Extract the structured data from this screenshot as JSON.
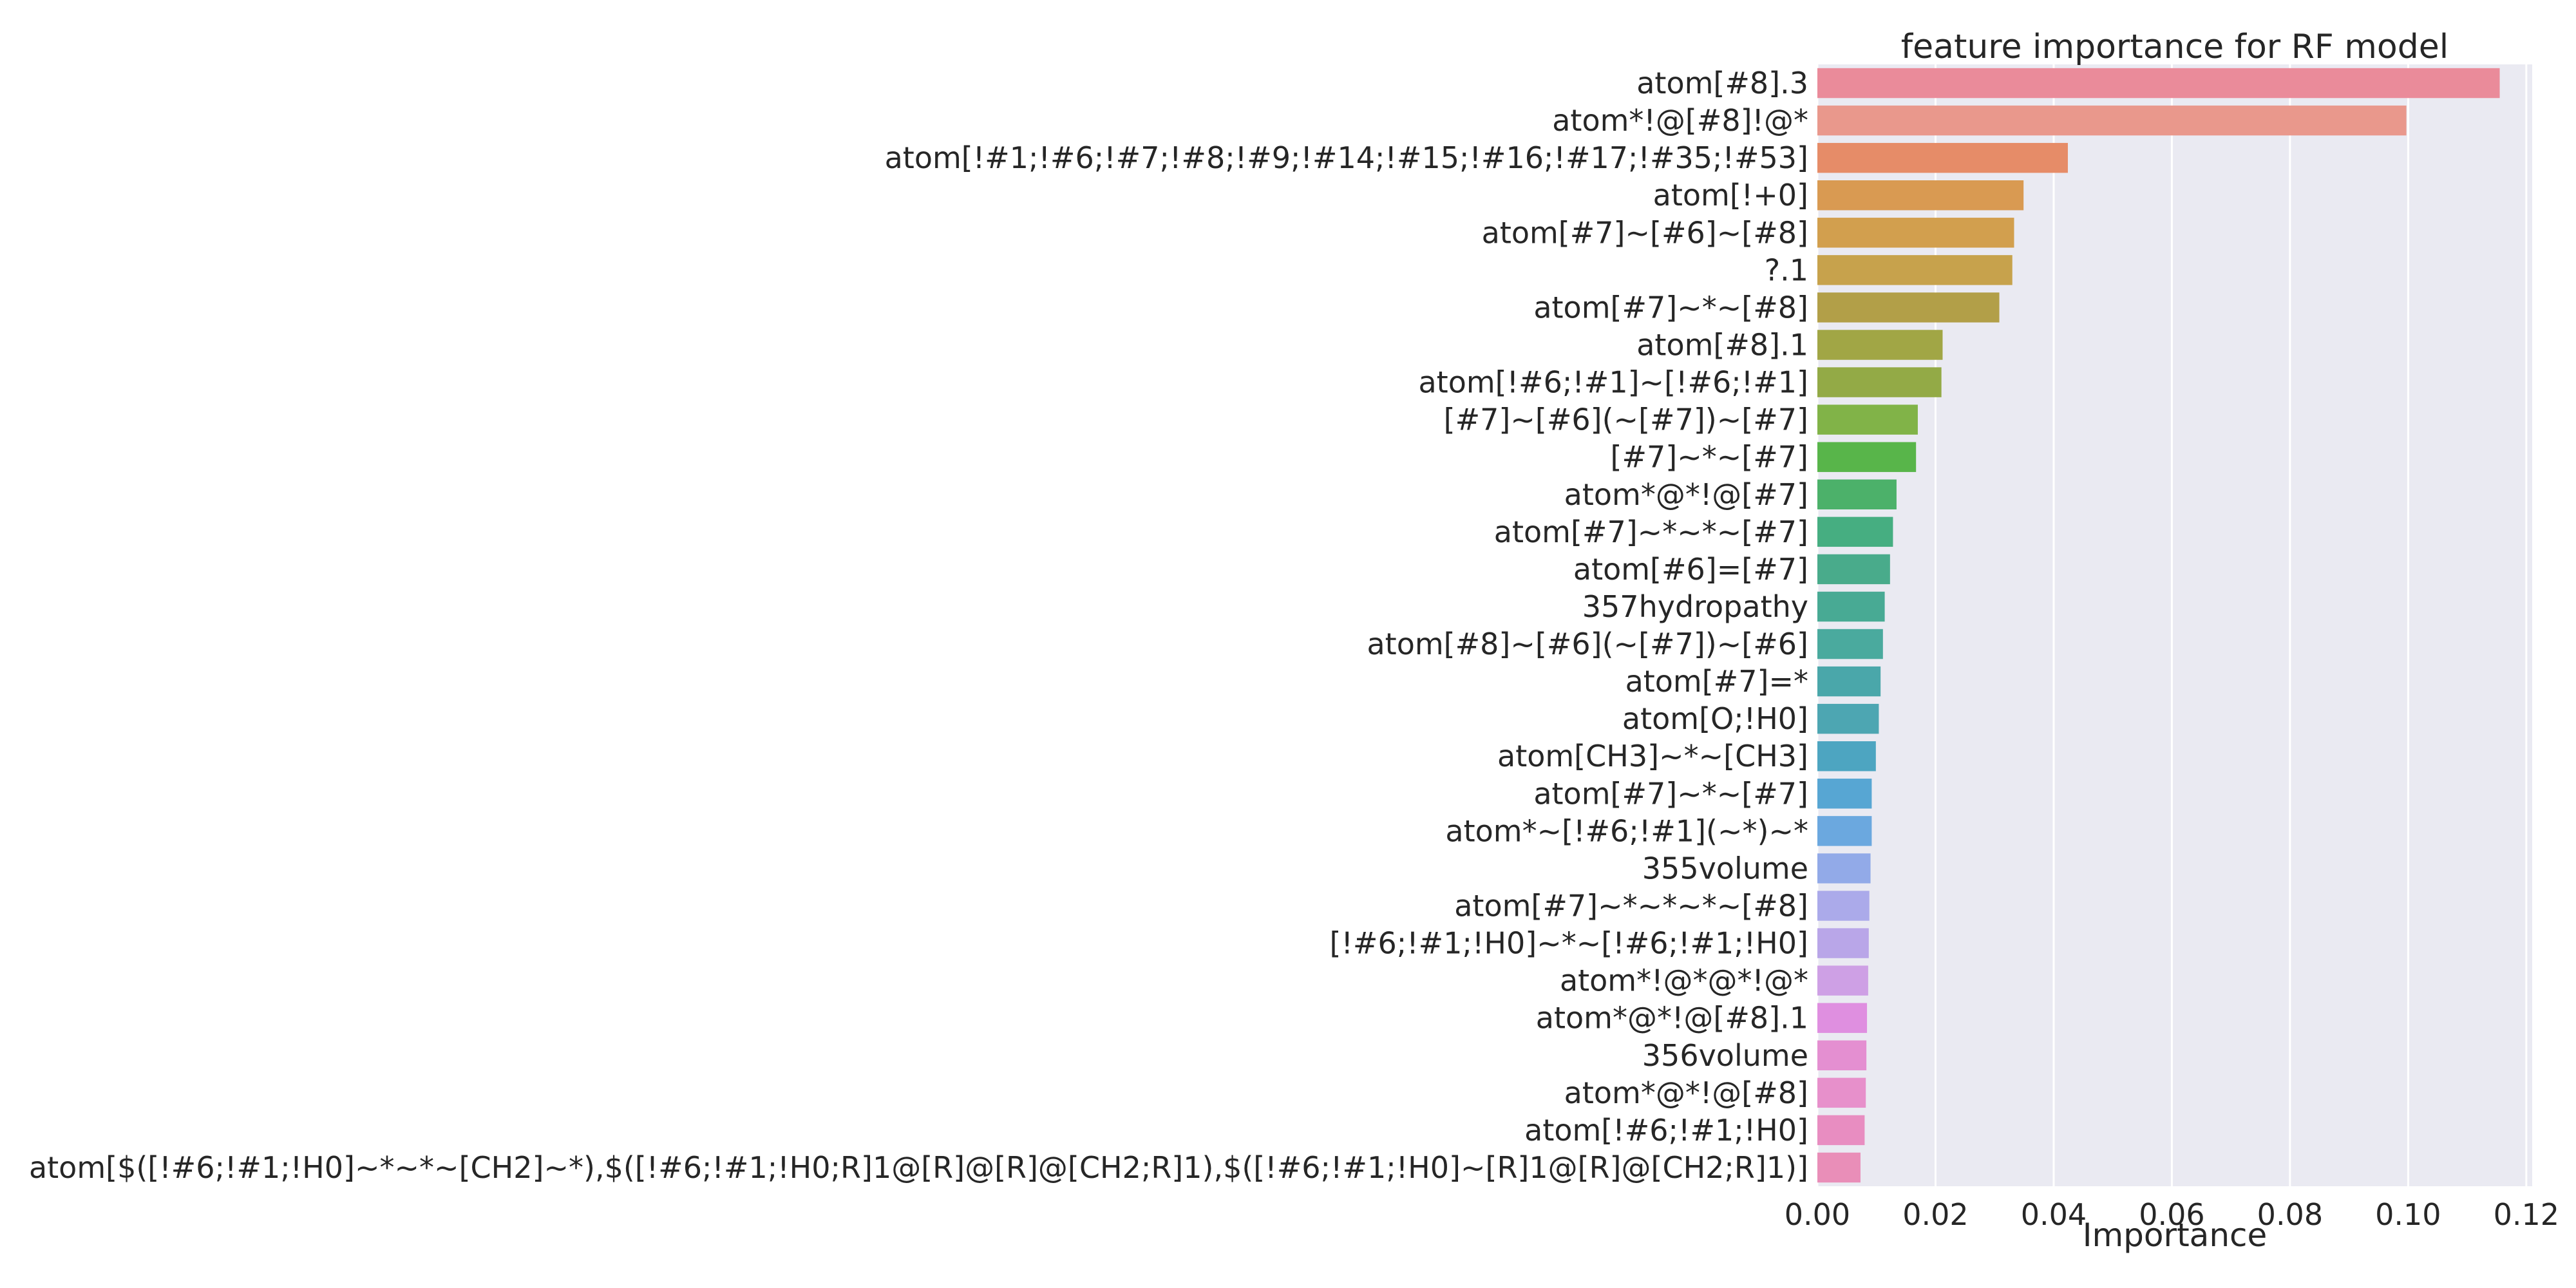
{
  "chart_data": {
    "type": "bar",
    "orientation": "horizontal",
    "title": "feature importance for RF model",
    "xlabel": "Importance",
    "ylabel": "",
    "xlim": [
      0.0,
      0.121
    ],
    "xticks": [
      0.0,
      0.02,
      0.04,
      0.06,
      0.08,
      0.1,
      0.12
    ],
    "xtick_labels": [
      "0.00",
      "0.02",
      "0.04",
      "0.06",
      "0.08",
      "0.10",
      "0.12"
    ],
    "grid": true,
    "legend": "none",
    "background": "#eaeaf2",
    "categories": [
      "atom[#8].3",
      "atom*!@[#8]!@*",
      "atom[!#1;!#6;!#7;!#8;!#9;!#14;!#15;!#16;!#17;!#35;!#53]",
      "atom[!+0]",
      "atom[#7]~[#6]~[#8]",
      "?.1",
      "atom[#7]~*~[#8]",
      "atom[#8].1",
      "atom[!#6;!#1]~[!#6;!#1]",
      "[#7]~[#6](~[#7])~[#7]",
      "[#7]~*~[#7]",
      "atom*@*!@[#7]",
      "atom[#7]~*~*~[#7]",
      "atom[#6]=[#7]",
      "357hydropathy",
      "atom[#8]~[#6](~[#7])~[#6]",
      "atom[#7]=*",
      "atom[O;!H0]",
      "atom[CH3]~*~[CH3]",
      "atom[#7]~*~[#7]",
      "atom*~[!#6;!#1](~*)~*",
      "355volume",
      "atom[#7]~*~*~*~[#8]",
      "[!#6;!#1;!H0]~*~[!#6;!#1;!H0]",
      "atom*!@*@*!@*",
      "atom*@*!@[#8].1",
      "356volume",
      "atom*@*!@[#8]",
      "atom[!#6;!#1;!H0]",
      "atom[$([!#6;!#1;!H0]~*~*~[CH2]~*),$([!#6;!#1;!H0;R]1@[R]@[R]@[CH2;R]1),$([!#6;!#1;!H0]~[R]1@[R]@[CH2;R]1)]"
    ],
    "values": [
      0.1155,
      0.0997,
      0.0424,
      0.0349,
      0.0333,
      0.033,
      0.0308,
      0.0212,
      0.021,
      0.017,
      0.0167,
      0.0134,
      0.0128,
      0.0123,
      0.0114,
      0.0111,
      0.0107,
      0.0104,
      0.0099,
      0.0092,
      0.0092,
      0.009,
      0.0088,
      0.0087,
      0.0086,
      0.0084,
      0.0083,
      0.0082,
      0.008,
      0.0073
    ],
    "colors": [
      "#ea8b9a",
      "#e9988c",
      "#e68c68",
      "#d99a52",
      "#d29f4e",
      "#c7a24c",
      "#b29f48",
      "#a1a645",
      "#93aa46",
      "#81b348",
      "#58b54a",
      "#4cb16a",
      "#46ae81",
      "#49ab8b",
      "#48aa94",
      "#4aaa9e",
      "#4aa7aa",
      "#4da6b2",
      "#4da5c1",
      "#57a6d3",
      "#6ba8df",
      "#92aae8",
      "#abaaea",
      "#b9a6e8",
      "#cea0e5",
      "#df8fe0",
      "#e48fd1",
      "#e790cb",
      "#e88dc1",
      "#e98eb8"
    ]
  }
}
